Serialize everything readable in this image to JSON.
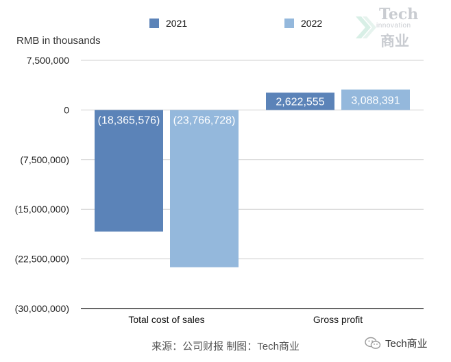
{
  "legend": [
    {
      "label": "2021",
      "color": "#5b83b8"
    },
    {
      "label": "2022",
      "color": "#94b8dc"
    }
  ],
  "unit_label": "RMB in thousands",
  "watermark": {
    "title": "Tech",
    "subtitle": "innovation",
    "chinese": "商业"
  },
  "source": "来源：公司财报 制图：Tech商业",
  "wechat": {
    "label": "Tech商业",
    "icon": "wechat-icon"
  },
  "chart_data": {
    "type": "bar",
    "categories": [
      "Total cost of sales",
      "Gross profit"
    ],
    "series": [
      {
        "name": "2021",
        "color": "#5b83b8",
        "values": [
          -18365576,
          2622555
        ],
        "labels": [
          "(18,365,576)",
          "2,622,555"
        ]
      },
      {
        "name": "2022",
        "color": "#94b8dc",
        "values": [
          -23766728,
          3088391
        ],
        "labels": [
          "(23,766,728)",
          "3,088,391"
        ]
      }
    ],
    "ylim": [
      -30000000,
      7500000
    ],
    "yticks": [
      7500000,
      0,
      -7500000,
      -15000000,
      -22500000,
      -30000000
    ],
    "ytick_labels": [
      "7,500,000",
      "0",
      "(7,500,000)",
      "(15,000,000)",
      "(22,500,000)",
      "(30,000,000)"
    ],
    "grid": true
  }
}
